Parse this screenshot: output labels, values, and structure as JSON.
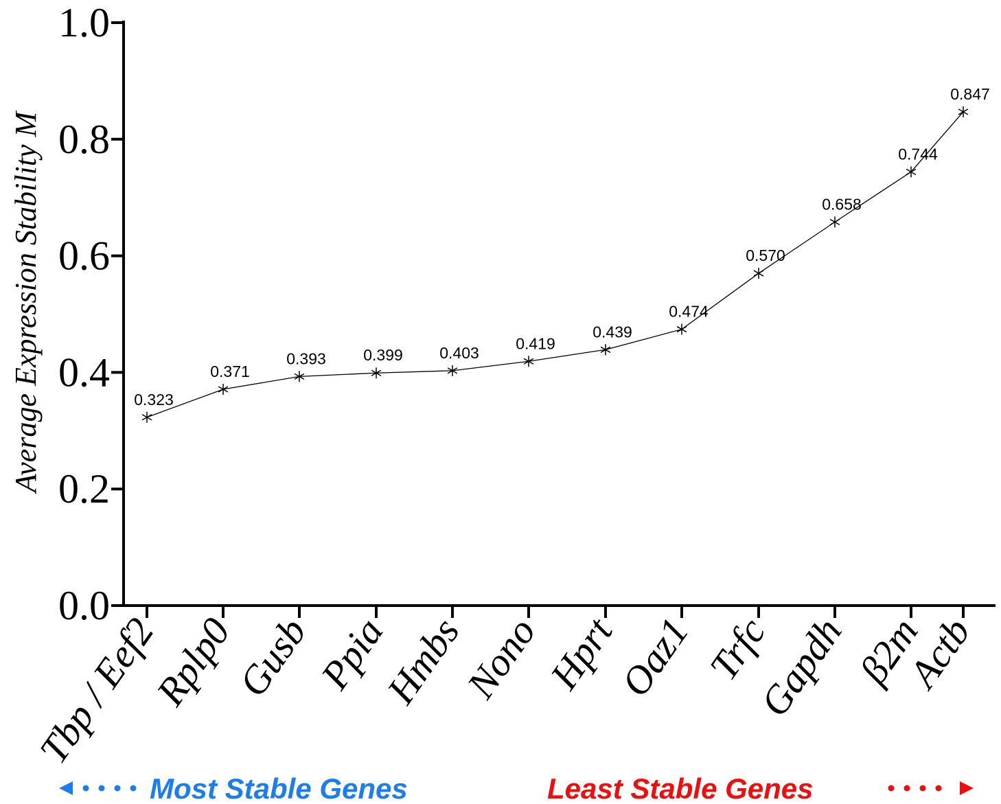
{
  "chart_data": {
    "type": "line",
    "categories": [
      "Tbp / Eef2",
      "Rplp0",
      "Gusb",
      "Ppia",
      "Hmbs",
      "Nono",
      "Hprt",
      "Oaz1",
      "Trfc",
      "Gapdh",
      "β2m",
      "Actb"
    ],
    "values": [
      0.323,
      0.371,
      0.393,
      0.399,
      0.403,
      0.419,
      0.439,
      0.474,
      0.57,
      0.658,
      0.744,
      0.847
    ],
    "data_labels": [
      "0.323",
      "0.371",
      "0.393",
      "0.399",
      "0.403",
      "0.419",
      "0.439",
      "0.474",
      "0.570",
      "0.658",
      "0.744",
      "0.847"
    ],
    "ylabel": "Average Expression Stability M",
    "xlabel": "",
    "ylim": [
      0.0,
      1.0
    ],
    "yticks": [
      "0.0",
      "0.2",
      "0.4",
      "0.6",
      "0.8",
      "1.0"
    ],
    "marker": "asterisk",
    "grid": false,
    "line_color": "#000000"
  },
  "footer": {
    "left_label": "Most Stable Genes",
    "right_label": "Least Stable Genes",
    "left_color": "#1a7ef0",
    "right_color": "#f20d0d"
  }
}
